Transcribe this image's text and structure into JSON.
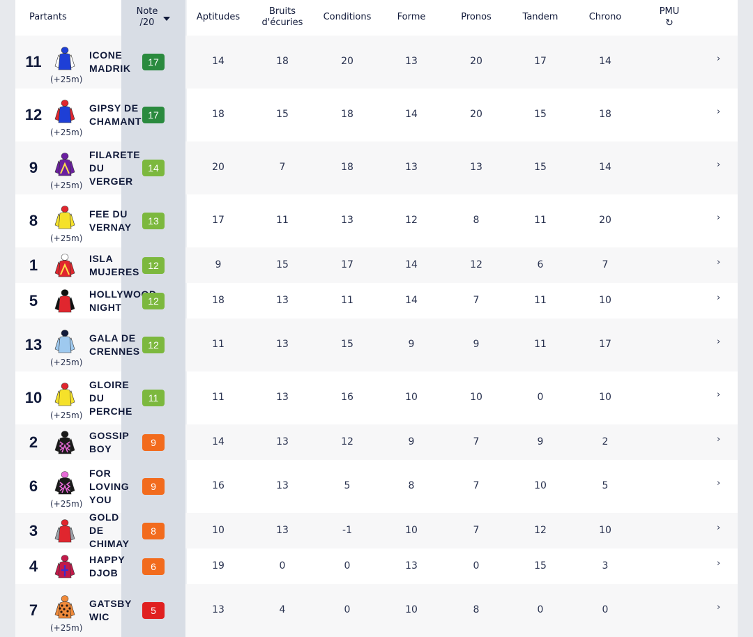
{
  "header": {
    "partants": "Partants",
    "note_line1": "Note",
    "note_line2": "/20",
    "aptitudes": "Aptitudes",
    "bruits_line1": "Bruits",
    "bruits_line2": "d'écuries",
    "conditions": "Conditions",
    "forme": "Forme",
    "pronos": "Pronos",
    "tandem": "Tandem",
    "chrono": "Chrono",
    "pmu": "PMU",
    "refresh_icon": "↻",
    "sort_icon": "caret-down-icon"
  },
  "colors": {
    "dark_green": "#2a8a3e",
    "light_green": "#7cb83e",
    "orange": "#f26b1d",
    "red": "#e02020"
  },
  "chevron": "›",
  "rows": [
    {
      "num": "11",
      "name_l1": "ICONE",
      "name_l2": "MADRIK",
      "name_l3": "",
      "dist": "(+25m)",
      "note": "17",
      "note_color": "#2a8a3e",
      "aptitudes": "14",
      "bruits": "18",
      "conditions": "20",
      "forme": "13",
      "pronos": "20",
      "tandem": "17",
      "chrono": "14",
      "silk": {
        "body": "#1e3fd6",
        "sleeves": "#ffffff",
        "cap": "#1e3fd6",
        "pattern": "none"
      }
    },
    {
      "num": "12",
      "name_l1": "GIPSY DE",
      "name_l2": "CHAMANT",
      "name_l3": "",
      "dist": "(+25m)",
      "note": "17",
      "note_color": "#2a8a3e",
      "aptitudes": "18",
      "bruits": "15",
      "conditions": "18",
      "forme": "14",
      "pronos": "20",
      "tandem": "15",
      "chrono": "18",
      "silk": {
        "body": "#1e3fd6",
        "sleeves": "#e0262e",
        "cap": "#e0262e",
        "pattern": "none"
      }
    },
    {
      "num": "9",
      "name_l1": "FILARETE",
      "name_l2": "DU",
      "name_l3": "VERGER",
      "dist": "(+25m)",
      "note": "14",
      "note_color": "#7cb83e",
      "aptitudes": "20",
      "bruits": "7",
      "conditions": "18",
      "forme": "13",
      "pronos": "13",
      "tandem": "15",
      "chrono": "14",
      "silk": {
        "body": "#6a1fa0",
        "sleeves": "#6a1fa0",
        "cap": "#6a1fa0",
        "pattern": "chevron"
      }
    },
    {
      "num": "8",
      "name_l1": "FEE DU",
      "name_l2": "VERNAY",
      "name_l3": "",
      "dist": "(+25m)",
      "note": "13",
      "note_color": "#7cb83e",
      "aptitudes": "17",
      "bruits": "11",
      "conditions": "13",
      "forme": "12",
      "pronos": "8",
      "tandem": "11",
      "chrono": "20",
      "silk": {
        "body": "#f5e12a",
        "sleeves": "#f5e12a",
        "cap": "#e0262e",
        "pattern": "none"
      }
    },
    {
      "num": "1",
      "name_l1": "ISLA",
      "name_l2": "MUJERES",
      "name_l3": "",
      "dist": "",
      "note": "12",
      "note_color": "#7cb83e",
      "aptitudes": "9",
      "bruits": "15",
      "conditions": "17",
      "forme": "14",
      "pronos": "12",
      "tandem": "6",
      "chrono": "7",
      "silk": {
        "body": "#e0262e",
        "sleeves": "#e0262e",
        "cap": "#ffffff",
        "pattern": "chevron"
      }
    },
    {
      "num": "5",
      "name_l1": "HOLLYWOOD",
      "name_l2": "NIGHT",
      "name_l3": "",
      "dist": "",
      "note": "12",
      "note_color": "#7cb83e",
      "aptitudes": "18",
      "bruits": "13",
      "conditions": "11",
      "forme": "14",
      "pronos": "7",
      "tandem": "11",
      "chrono": "10",
      "silk": {
        "body": "#e0262e",
        "sleeves": "#111111",
        "cap": "#111111",
        "pattern": "none"
      }
    },
    {
      "num": "13",
      "name_l1": "GALA DE",
      "name_l2": "CRENNES",
      "name_l3": "",
      "dist": "(+25m)",
      "note": "12",
      "note_color": "#7cb83e",
      "aptitudes": "11",
      "bruits": "13",
      "conditions": "15",
      "forme": "9",
      "pronos": "9",
      "tandem": "11",
      "chrono": "17",
      "silk": {
        "body": "#9ec9ef",
        "sleeves": "#9ec9ef",
        "cap": "#111a3a",
        "pattern": "none"
      }
    },
    {
      "num": "10",
      "name_l1": "GLOIRE",
      "name_l2": "DU",
      "name_l3": "PERCHE",
      "dist": "(+25m)",
      "note": "11",
      "note_color": "#7cb83e",
      "aptitudes": "11",
      "bruits": "13",
      "conditions": "16",
      "forme": "10",
      "pronos": "10",
      "tandem": "0",
      "chrono": "10",
      "silk": {
        "body": "#f5e12a",
        "sleeves": "#f5e12a",
        "cap": "#e0262e",
        "pattern": "none"
      }
    },
    {
      "num": "2",
      "name_l1": "GOSSIP",
      "name_l2": "BOY",
      "name_l3": "",
      "dist": "",
      "note": "9",
      "note_color": "#f26b1d",
      "aptitudes": "14",
      "bruits": "13",
      "conditions": "12",
      "forme": "9",
      "pronos": "7",
      "tandem": "9",
      "chrono": "2",
      "silk": {
        "body": "#1a1a1a",
        "sleeves": "#1a1a1a",
        "cap": "#1a1a1a",
        "pattern": "zigzag"
      }
    },
    {
      "num": "6",
      "name_l1": "FOR",
      "name_l2": "LOVING",
      "name_l3": "YOU",
      "dist": "(+25m)",
      "note": "9",
      "note_color": "#f26b1d",
      "aptitudes": "16",
      "bruits": "13",
      "conditions": "5",
      "forme": "8",
      "pronos": "7",
      "tandem": "10",
      "chrono": "5",
      "silk": {
        "body": "#1a1a1a",
        "sleeves": "#1a1a1a",
        "cap": "#e86bd8",
        "pattern": "zigzag"
      }
    },
    {
      "num": "3",
      "name_l1": "GOLD",
      "name_l2": "DE",
      "name_l3": "CHIMAY",
      "dist": "",
      "note": "8",
      "note_color": "#f26b1d",
      "aptitudes": "10",
      "bruits": "13",
      "conditions": "-1",
      "forme": "10",
      "pronos": "7",
      "tandem": "12",
      "chrono": "10",
      "silk": {
        "body": "#e0262e",
        "sleeves": "#9aa0a8",
        "cap": "#e0262e",
        "pattern": "none"
      }
    },
    {
      "num": "4",
      "name_l1": "HAPPY",
      "name_l2": "DJOB",
      "name_l3": "",
      "dist": "",
      "note": "6",
      "note_color": "#f26b1d",
      "aptitudes": "19",
      "bruits": "0",
      "conditions": "0",
      "forme": "13",
      "pronos": "0",
      "tandem": "15",
      "chrono": "3",
      "silk": {
        "body": "#c21a4a",
        "sleeves": "#c21a4a",
        "cap": "#c21a4a",
        "pattern": "cross"
      }
    },
    {
      "num": "7",
      "name_l1": "GATSBY",
      "name_l2": "WIC",
      "name_l3": "",
      "dist": "(+25m)",
      "note": "5",
      "note_color": "#e02020",
      "aptitudes": "13",
      "bruits": "4",
      "conditions": "0",
      "forme": "10",
      "pronos": "8",
      "tandem": "0",
      "chrono": "0",
      "silk": {
        "body": "#f08a3a",
        "sleeves": "#f08a3a",
        "cap": "#f08a3a",
        "pattern": "dots"
      }
    }
  ]
}
